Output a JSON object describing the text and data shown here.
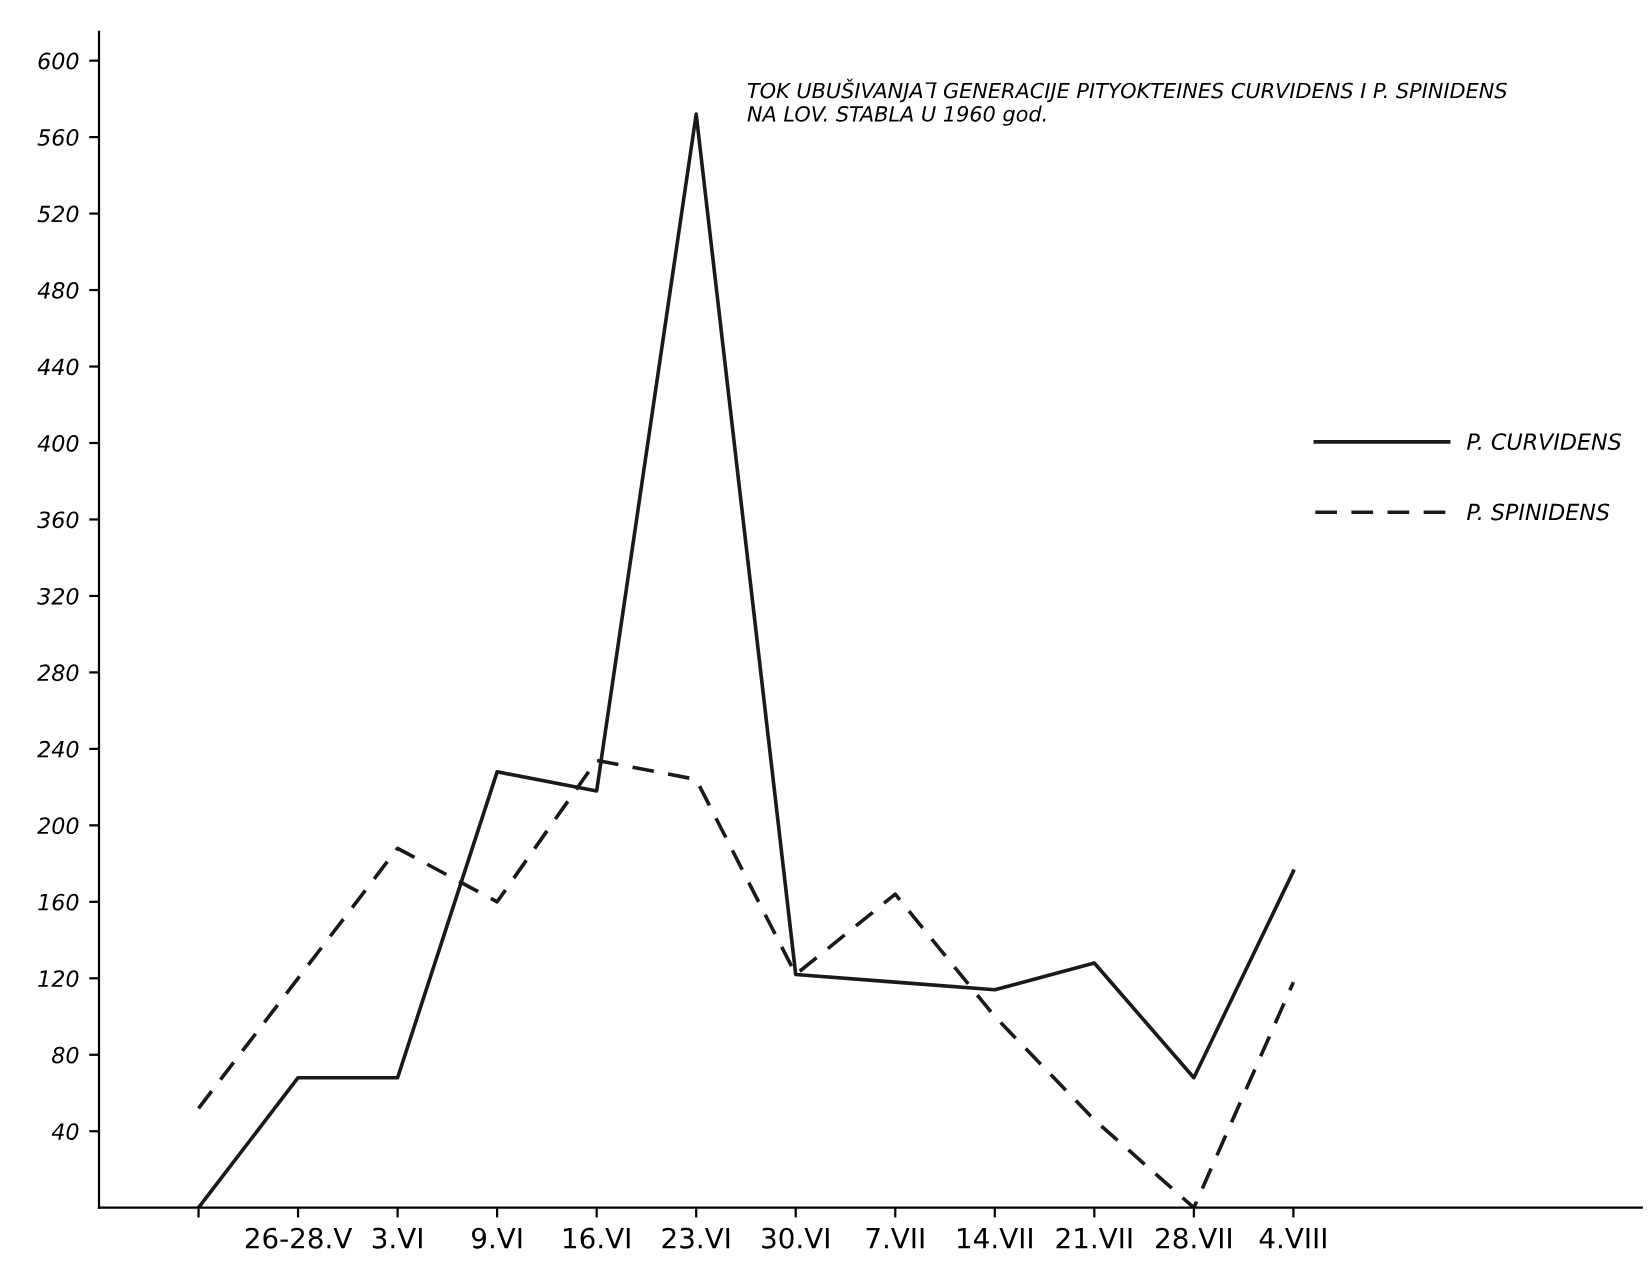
{
  "chart_data": {
    "type": "line",
    "title": "TOK UBUŠIVANJA I̅ GENERACIJE PITYOKTEINES CURVIDENS I P. SPINIDENS\nNA LOV. STABLA U 1960 god.",
    "categories": [
      null,
      "26-28.V",
      "3.VI",
      "9.VI",
      "16.VI",
      "23.VI",
      "30.VI",
      "7.VII",
      "14.VII",
      "21.VII",
      "28.VII",
      "4.VIII"
    ],
    "ylim": [
      0,
      615
    ],
    "yticks": [
      40,
      80,
      120,
      160,
      200,
      240,
      280,
      320,
      360,
      400,
      440,
      480,
      520,
      560,
      600
    ],
    "legend": "right",
    "grid": false,
    "series": [
      {
        "name": "P. CURVIDENS",
        "color": "#1a1a1a",
        "line_style": "solid",
        "values": [
          0,
          68,
          68,
          228,
          218,
          572,
          122,
          118,
          114,
          128,
          68,
          176
        ]
      },
      {
        "name": "P. SPINIDENS",
        "color": "#1a1a1a",
        "line_style": "dashed",
        "values": [
          52,
          null,
          188,
          160,
          234,
          224,
          122,
          164,
          100,
          46,
          0,
          118
        ]
      }
    ]
  }
}
